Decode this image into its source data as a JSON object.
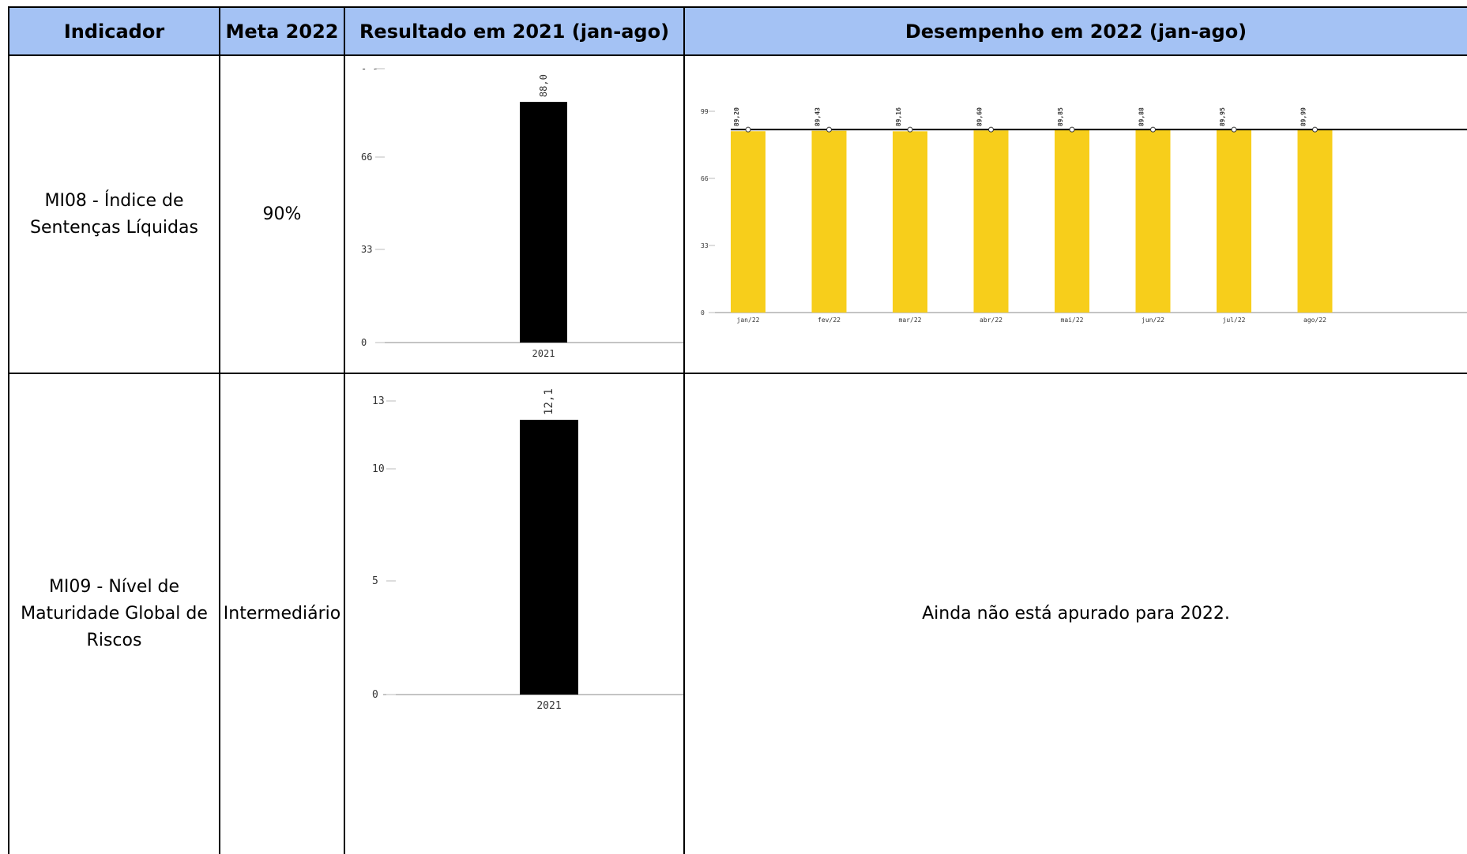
{
  "table": {
    "headers": [
      "Indicador",
      "Meta 2022",
      "Resultado em 2021 (jan-ago)",
      "Desempenho em 2022 (jan-ago)"
    ],
    "rows": [
      {
        "indicator": "MI08 - Índice de Sentenças Líquidas",
        "indicator_lines": [
          "MI08 - Índice de",
          "Sentenças Líquidas"
        ],
        "meta": "90%",
        "desempenho_note": ""
      },
      {
        "indicator": "MI09 - Nível de Maturidade Global de Riscos",
        "indicator_lines": [
          "MI09 - Nível de",
          "Maturidade Global de",
          "Riscos"
        ],
        "meta": "Intermediário",
        "desempenho_note": "Ainda não está apurado para 2022."
      }
    ]
  },
  "chart_data": [
    {
      "id": "mi08-2021",
      "type": "bar",
      "categories": [
        "2021"
      ],
      "values": [
        88.0
      ],
      "value_labels": [
        "88,0"
      ],
      "yticks": [
        "0",
        "33",
        "66",
        "- -"
      ],
      "ylim": [
        0,
        99
      ],
      "bar_color": "#000000"
    },
    {
      "id": "mi08-2022",
      "type": "bar",
      "categories": [
        "jan/22",
        "fev/22",
        "mar/22",
        "abr/22",
        "mai/22",
        "jun/22",
        "jul/22",
        "ago/22"
      ],
      "values": [
        89.2,
        89.43,
        89.16,
        89.6,
        89.85,
        89.88,
        89.95,
        89.99
      ],
      "value_labels": [
        "89,20",
        "89,43",
        "89,16",
        "89,60",
        "89,85",
        "89,88",
        "89,95",
        "89,99"
      ],
      "target_line": 90,
      "yticks": [
        "0",
        "33",
        "66",
        "99"
      ],
      "ylim": [
        0,
        99
      ],
      "bar_color": "#f7ce1b"
    },
    {
      "id": "mi09-2021",
      "type": "bar",
      "categories": [
        "2021"
      ],
      "values": [
        12.1
      ],
      "value_labels": [
        "12,1"
      ],
      "yticks": [
        "0",
        "5",
        "10",
        "13"
      ],
      "ylim": [
        0,
        13
      ],
      "bar_color": "#000000"
    }
  ]
}
